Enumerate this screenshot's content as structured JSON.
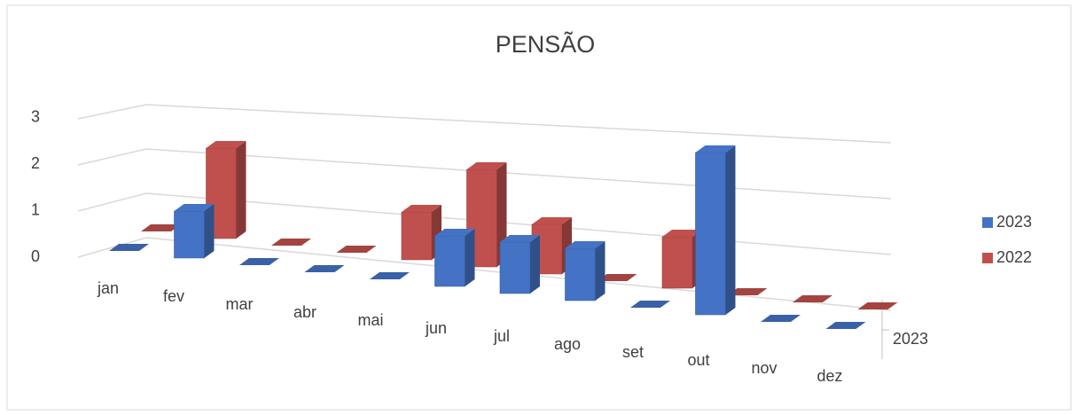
{
  "chart_data": {
    "type": "bar3d",
    "title": "PENSÃO",
    "categories": [
      "jan",
      "fev",
      "mar",
      "abr",
      "mai",
      "jun",
      "jul",
      "ago",
      "set",
      "out",
      "nov",
      "dez"
    ],
    "series": [
      {
        "name": "2023",
        "color": "#4472c4",
        "values": [
          0,
          1,
          0,
          0,
          0,
          1,
          1,
          1,
          0,
          3,
          0,
          0
        ]
      },
      {
        "name": "2022",
        "color": "#c0504d",
        "values": [
          0,
          2,
          0,
          0,
          1,
          2,
          1,
          0,
          1,
          0,
          0,
          0
        ]
      }
    ],
    "ylim": [
      0,
      3
    ],
    "yticks": [
      0,
      1,
      2,
      3
    ],
    "grid": true,
    "legend": "right"
  }
}
